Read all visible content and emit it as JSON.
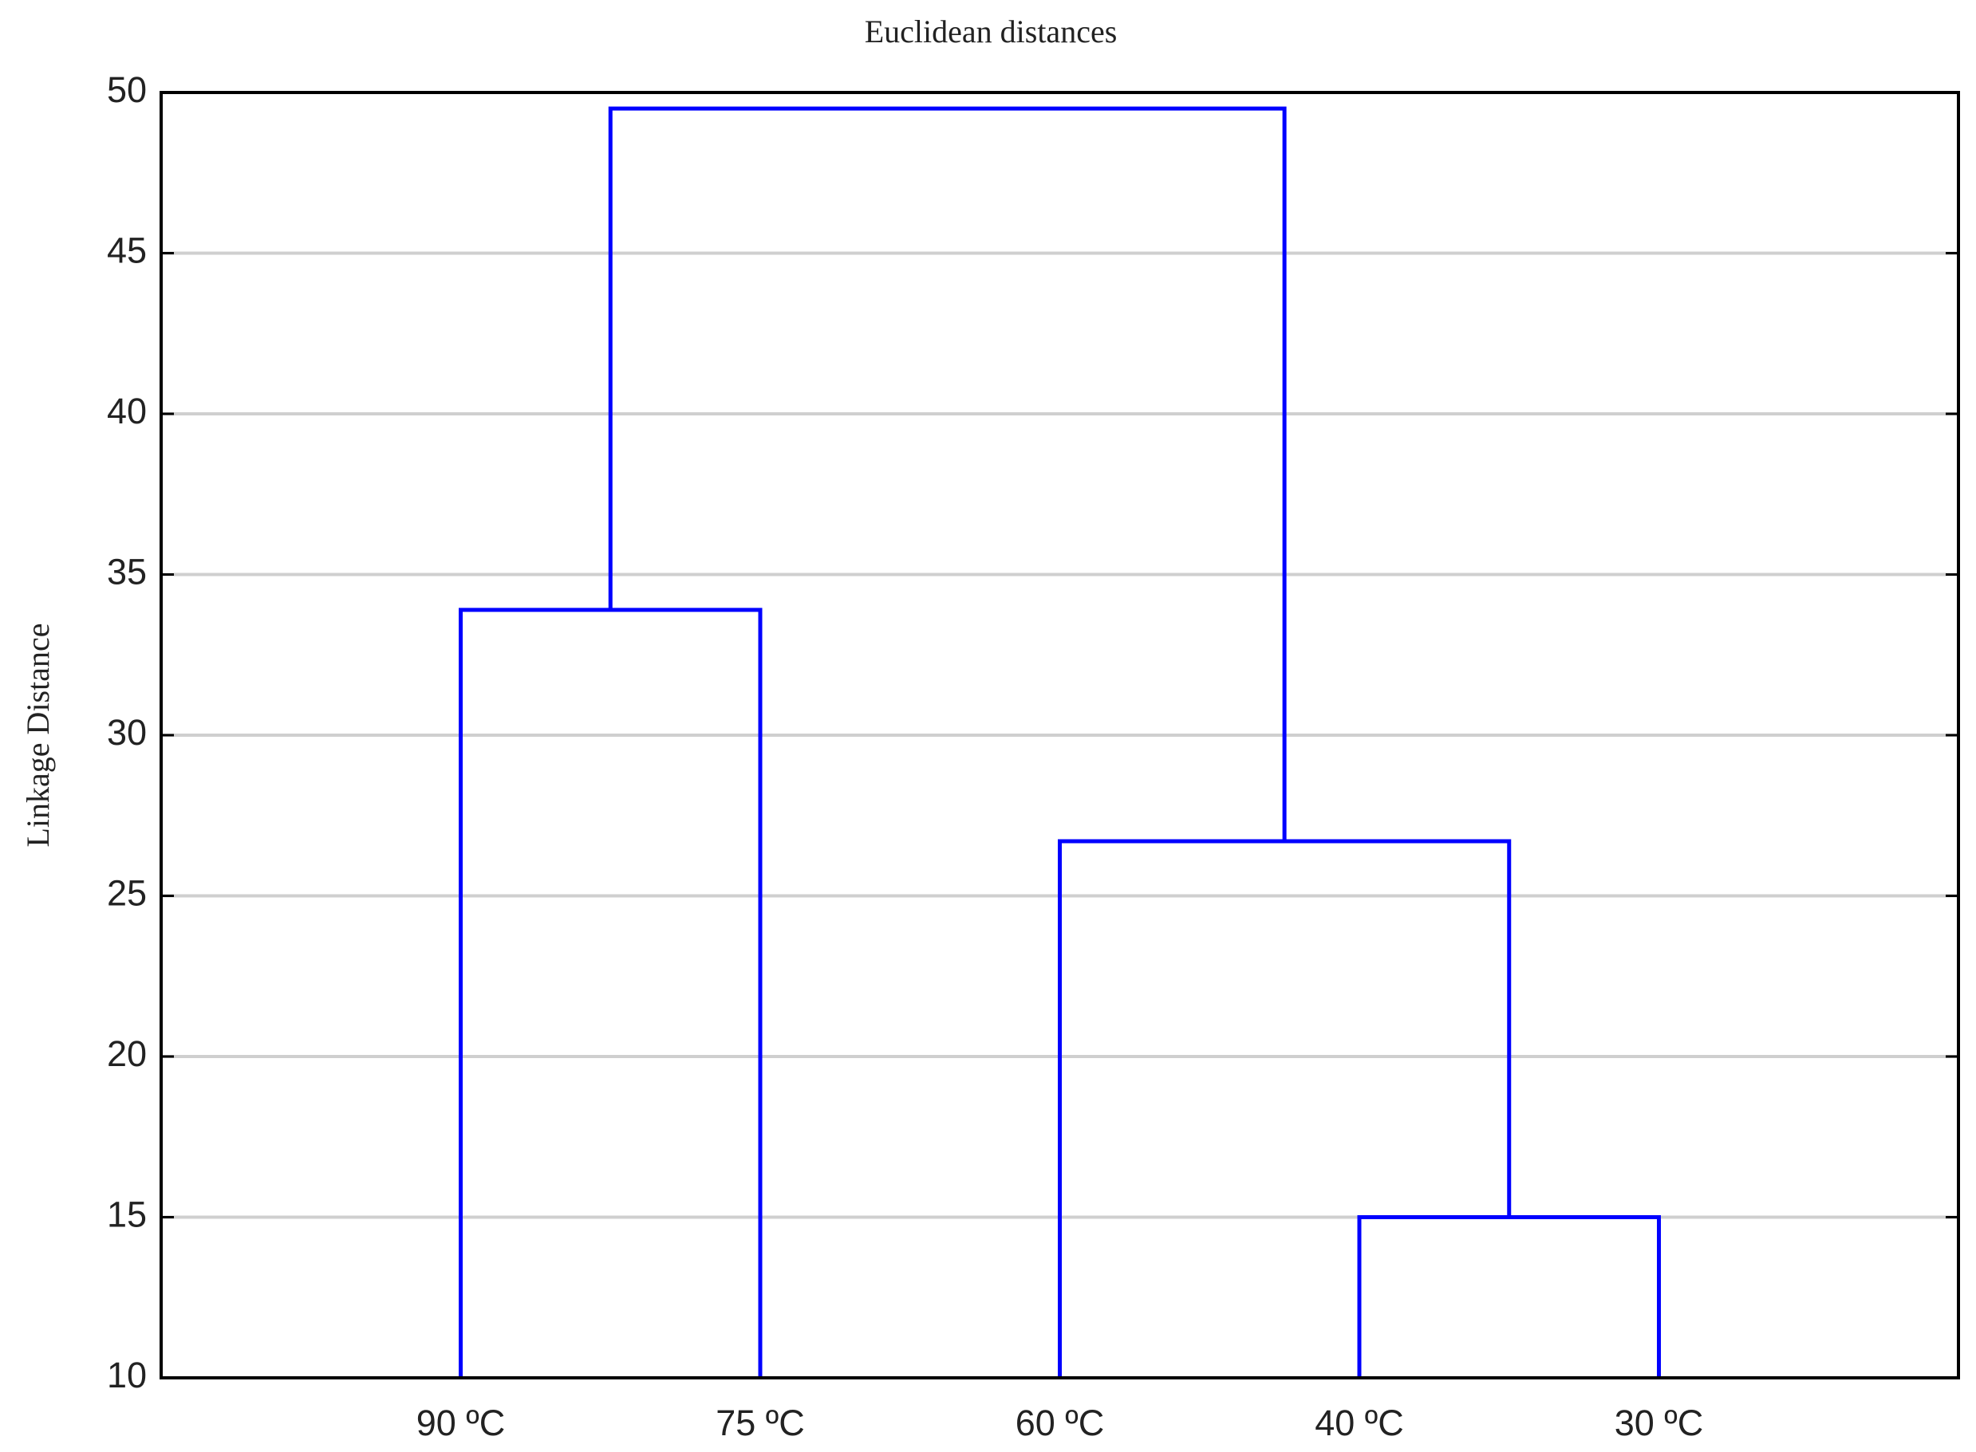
{
  "chart_data": {
    "type": "dendrogram",
    "title": "Euclidean distances",
    "y_label": "Linkage Distance",
    "categories": [
      "90 ºC",
      "75 ºC",
      "60 ºC",
      "40 ºC",
      "30 ºC"
    ],
    "merges": [
      {
        "children": [
          0,
          1
        ],
        "height": 33.9
      },
      {
        "children": [
          3,
          4
        ],
        "height": 15
      },
      {
        "children": [
          2,
          6
        ],
        "height": 26.7
      },
      {
        "children": [
          5,
          7
        ],
        "height": 49.5
      }
    ],
    "color": "#0000ff",
    "ylim": [
      10,
      50
    ],
    "yticks": [
      10,
      15,
      20,
      25,
      30,
      35,
      40,
      45,
      50
    ],
    "grid": true
  }
}
